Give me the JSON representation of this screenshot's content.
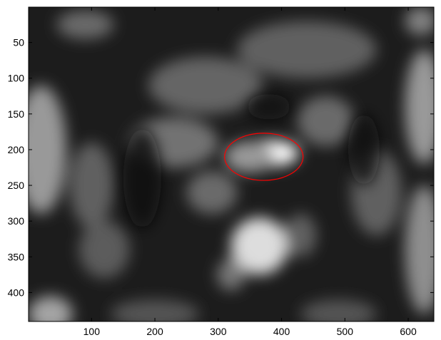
{
  "chart_data": {
    "type": "heatmap",
    "title": "",
    "xlabel": "",
    "ylabel": "",
    "colormap": "gray",
    "xlim": [
      1,
      640
    ],
    "ylim": [
      1,
      440
    ],
    "y_direction": "reverse",
    "x_ticks": [
      100,
      200,
      300,
      400,
      500,
      600
    ],
    "y_ticks": [
      50,
      100,
      150,
      200,
      250,
      300,
      350,
      400
    ],
    "x_tick_labels": [
      "100",
      "200",
      "300",
      "400",
      "500",
      "600"
    ],
    "y_tick_labels": [
      "50",
      "100",
      "150",
      "200",
      "250",
      "300",
      "350",
      "400"
    ],
    "intensity_blobs": [
      {
        "x": 385,
        "y": 205,
        "sx": 42,
        "sy": 18,
        "value": 1.0
      },
      {
        "x": 350,
        "y": 210,
        "sx": 40,
        "sy": 22,
        "value": 0.55
      },
      {
        "x": 365,
        "y": 335,
        "sx": 45,
        "sy": 40,
        "value": 0.85
      },
      {
        "x": 320,
        "y": 375,
        "sx": 22,
        "sy": 22,
        "value": 0.4
      },
      {
        "x": 430,
        "y": 320,
        "sx": 25,
        "sy": 30,
        "value": 0.3
      },
      {
        "x": 20,
        "y": 200,
        "sx": 40,
        "sy": 90,
        "value": 0.55
      },
      {
        "x": 35,
        "y": 430,
        "sx": 35,
        "sy": 25,
        "value": 0.6
      },
      {
        "x": 625,
        "y": 140,
        "sx": 30,
        "sy": 80,
        "value": 0.55
      },
      {
        "x": 625,
        "y": 340,
        "sx": 30,
        "sy": 90,
        "value": 0.5
      },
      {
        "x": 620,
        "y": 20,
        "sx": 25,
        "sy": 20,
        "value": 0.45
      },
      {
        "x": 90,
        "y": 25,
        "sx": 45,
        "sy": 20,
        "value": 0.35
      },
      {
        "x": 440,
        "y": 60,
        "sx": 110,
        "sy": 40,
        "value": 0.3
      },
      {
        "x": 280,
        "y": 110,
        "sx": 90,
        "sy": 40,
        "value": 0.32
      },
      {
        "x": 230,
        "y": 190,
        "sx": 70,
        "sy": 35,
        "value": 0.38
      },
      {
        "x": 470,
        "y": 160,
        "sx": 45,
        "sy": 35,
        "value": 0.35
      },
      {
        "x": 290,
        "y": 260,
        "sx": 40,
        "sy": 30,
        "value": 0.35
      },
      {
        "x": 100,
        "y": 250,
        "sx": 35,
        "sy": 60,
        "value": 0.3
      },
      {
        "x": 120,
        "y": 340,
        "sx": 40,
        "sy": 40,
        "value": 0.28
      },
      {
        "x": 550,
        "y": 260,
        "sx": 40,
        "sy": 60,
        "value": 0.3
      },
      {
        "x": 200,
        "y": 430,
        "sx": 70,
        "sy": 20,
        "value": 0.25
      },
      {
        "x": 490,
        "y": 430,
        "sx": 60,
        "sy": 20,
        "value": 0.25
      }
    ],
    "dark_regions": [
      {
        "x": 180,
        "y": 240,
        "sx": 30,
        "sy": 70,
        "value": 0.35
      },
      {
        "x": 530,
        "y": 200,
        "sx": 25,
        "sy": 50,
        "value": 0.3
      },
      {
        "x": 380,
        "y": 140,
        "sx": 35,
        "sy": 18,
        "value": 0.25
      }
    ],
    "annotation": {
      "shape": "ellipse",
      "cx": 372,
      "cy": 210,
      "rx": 62,
      "ry": 33,
      "color": "#ff0000"
    }
  }
}
